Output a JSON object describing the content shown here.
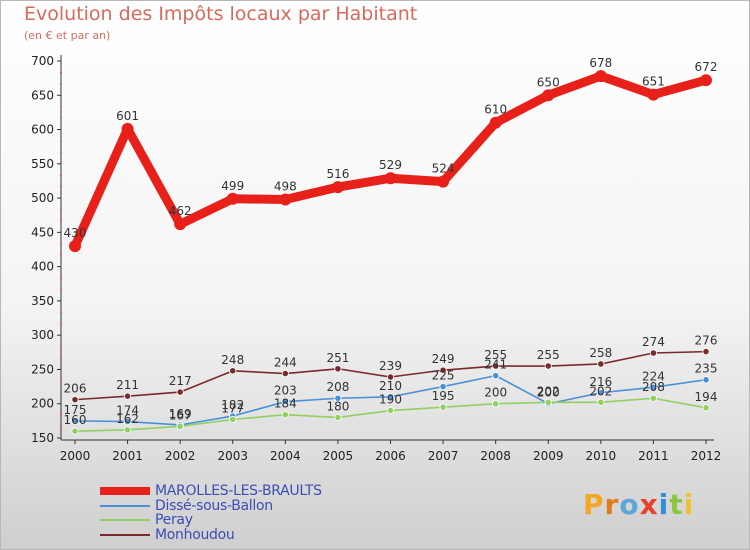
{
  "title": "Evolution des Impôts locaux par Habitant",
  "subtitle": "(en € et par an)",
  "brand": {
    "letters": [
      "P",
      "r",
      "o",
      "x",
      "i",
      "t",
      "i"
    ],
    "letter_colors": [
      "#f5a623",
      "#e07b1f",
      "#5aa7d8",
      "#e8402b",
      "#2f8fd8",
      "#8cc63f",
      "#f2c12e"
    ]
  },
  "chart_data": {
    "type": "line",
    "x": [
      2000,
      2001,
      2002,
      2003,
      2004,
      2005,
      2006,
      2007,
      2008,
      2009,
      2010,
      2011,
      2012
    ],
    "ylim": [
      150,
      700
    ],
    "yticks": [
      150,
      200,
      250,
      300,
      350,
      400,
      450,
      500,
      550,
      600,
      650,
      700
    ],
    "grid": false,
    "legend_position": "bottom-left",
    "series": [
      {
        "name": "MAROLLES-LES-BRAULTS",
        "color": "#e8201a",
        "values": [
          430,
          601,
          462,
          499,
          498,
          516,
          529,
          524,
          610,
          650,
          678,
          651,
          672
        ],
        "labels": [
          "430",
          "601",
          "462",
          "499",
          "498",
          "516",
          "529",
          "524",
          "610",
          "650",
          "678",
          "651",
          "672"
        ]
      },
      {
        "name": "Dissé-sous-Ballon",
        "color": "#4a90d9",
        "values": [
          175,
          174,
          169,
          182,
          203,
          208,
          210,
          225,
          241,
          200,
          216,
          224,
          235
        ],
        "labels": [
          "175",
          "174",
          "169",
          "182",
          "203",
          "208",
          "210",
          "225",
          "241",
          "200",
          "216",
          "224",
          "235"
        ]
      },
      {
        "name": "Peray",
        "color": "#90d060",
        "values": [
          160,
          162,
          167,
          177,
          184,
          180,
          190,
          195,
          200,
          202,
          202,
          208,
          194
        ],
        "labels": [
          "160",
          "162",
          "167",
          "177",
          "184",
          "180",
          "190",
          "195",
          "200",
          "202",
          "202",
          "208",
          "194"
        ]
      },
      {
        "name": "Monhoudou",
        "color": "#7a2a2a",
        "values": [
          206,
          211,
          217,
          248,
          244,
          251,
          239,
          249,
          255,
          255,
          258,
          274,
          276
        ],
        "labels": [
          "206",
          "211",
          "217",
          "248",
          "244",
          "251",
          "239",
          "249",
          "255",
          "255",
          "258",
          "274",
          "276"
        ]
      }
    ]
  }
}
